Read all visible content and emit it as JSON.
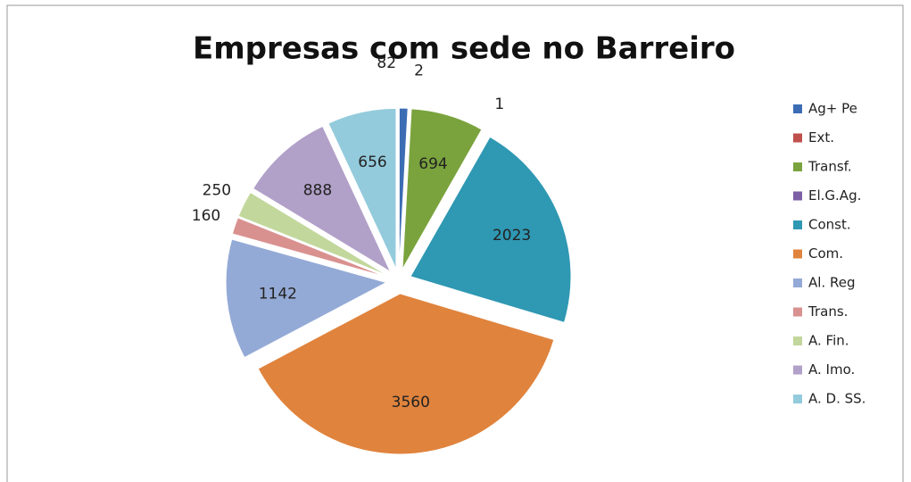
{
  "chart_data": {
    "type": "pie",
    "title": "Empresas com sede no Barreiro",
    "categories": [
      "Ag+ Pe",
      "Ext.",
      "Transf.",
      "El.G.Ag.",
      "Const.",
      "Com.",
      "Al. Reg",
      "Trans.",
      "A. Fin.",
      "A. Imo.",
      "A. D. SS."
    ],
    "values": [
      82,
      2,
      694,
      1,
      2023,
      3560,
      1142,
      160,
      250,
      888,
      656
    ],
    "colors": [
      "#3c6db4",
      "#c0504d",
      "#7aa33d",
      "#7d5fa5",
      "#2f98b3",
      "#e0833d",
      "#94aad6",
      "#d9918f",
      "#c2d79b",
      "#b1a0c8",
      "#93cbdc"
    ],
    "legend": "right"
  }
}
